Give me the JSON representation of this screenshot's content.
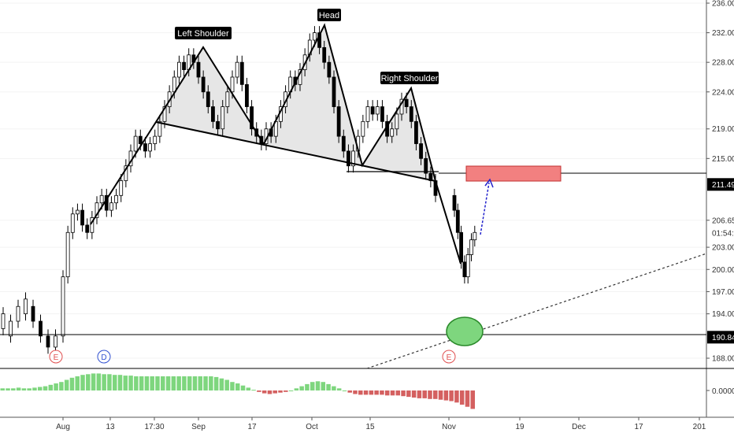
{
  "chart_data": {
    "type": "candlestick",
    "price_axis": {
      "ticks": [
        "236.00",
        "232.00",
        "228.00",
        "224.00",
        "219.00",
        "215.00",
        "211.49",
        "206.65",
        "01:54:24",
        "203.00",
        "200.00",
        "197.00",
        "194.00",
        "190.84",
        "188.00"
      ],
      "tick_values": [
        236.0,
        232.0,
        228.0,
        224.0,
        219.0,
        215.0,
        211.49,
        206.65,
        204.9,
        203.0,
        200.0,
        197.0,
        194.0,
        190.84,
        188.0
      ]
    },
    "osc_axis": {
      "ticks": [
        "0.0000"
      ]
    },
    "time_axis": {
      "ticks": [
        "Aug",
        "13",
        "17:30",
        "Sep",
        "17",
        "Oct",
        "15",
        "Nov",
        "19",
        "Dec",
        "17",
        "201"
      ]
    },
    "pattern_labels": {
      "left_shoulder": "Left Shoulder",
      "head": "Head",
      "right_shoulder": "Right Shoulder"
    },
    "events": [
      "E",
      "D",
      "E"
    ],
    "levels": [
      {
        "name": "resistance",
        "value": 211.49,
        "label": "211.49"
      },
      {
        "name": "support",
        "value": 190.84,
        "label": "190.84"
      }
    ],
    "last_price": 206.65,
    "countdown": "01:54:24",
    "price_range": [
      185,
      236.5
    ],
    "candle_seed": [
      [
        192,
        194
      ],
      [
        191,
        193
      ],
      [
        193,
        195
      ],
      [
        194,
        196
      ],
      [
        195,
        193
      ],
      [
        193,
        191
      ],
      [
        191,
        189.5
      ],
      [
        189.5,
        191
      ],
      [
        191,
        199
      ],
      [
        199,
        205
      ],
      [
        205,
        207.5
      ],
      [
        207.5,
        208
      ],
      [
        208,
        206
      ],
      [
        206,
        205
      ],
      [
        205,
        207
      ],
      [
        207,
        209
      ],
      [
        209,
        210
      ],
      [
        210,
        208
      ],
      [
        208,
        209
      ],
      [
        209,
        210
      ],
      [
        210,
        212
      ],
      [
        212,
        214
      ],
      [
        214,
        216
      ],
      [
        216,
        218
      ],
      [
        218,
        217
      ],
      [
        217,
        216
      ],
      [
        216,
        217
      ],
      [
        217,
        218
      ],
      [
        218,
        220
      ],
      [
        220,
        222
      ],
      [
        222,
        224
      ],
      [
        224,
        226
      ],
      [
        226,
        228
      ],
      [
        228,
        227
      ],
      [
        227,
        229
      ],
      [
        229,
        228
      ],
      [
        228,
        226
      ],
      [
        226,
        224
      ],
      [
        224,
        222
      ],
      [
        222,
        220
      ],
      [
        220,
        219
      ],
      [
        219,
        222
      ],
      [
        222,
        224
      ],
      [
        224,
        226
      ],
      [
        226,
        228
      ],
      [
        228,
        225
      ],
      [
        225,
        222
      ],
      [
        222,
        219
      ],
      [
        219,
        218
      ],
      [
        218,
        217
      ],
      [
        217,
        219
      ],
      [
        219,
        218
      ],
      [
        218,
        220
      ],
      [
        220,
        222
      ],
      [
        222,
        224
      ],
      [
        224,
        226
      ],
      [
        226,
        225
      ],
      [
        225,
        227
      ],
      [
        227,
        229
      ],
      [
        229,
        231
      ],
      [
        231,
        232
      ],
      [
        232,
        230
      ],
      [
        230,
        228
      ],
      [
        228,
        226
      ],
      [
        226,
        222
      ],
      [
        222,
        218
      ],
      [
        218,
        216
      ],
      [
        216,
        214
      ],
      [
        214,
        216
      ],
      [
        216,
        218
      ],
      [
        218,
        220
      ],
      [
        220,
        222
      ],
      [
        222,
        221
      ],
      [
        221,
        222
      ],
      [
        222,
        220
      ],
      [
        220,
        218
      ],
      [
        218,
        219
      ],
      [
        219,
        221
      ],
      [
        221,
        223
      ],
      [
        223,
        222
      ],
      [
        222,
        220
      ],
      [
        220,
        217
      ],
      [
        217,
        215
      ],
      [
        215,
        213
      ],
      [
        213,
        212
      ],
      [
        212,
        210
      ],
      [
        210,
        208
      ],
      [
        208,
        205
      ],
      [
        205,
        201
      ],
      [
        201,
        199
      ],
      [
        199,
        202
      ],
      [
        202,
        204
      ],
      [
        204,
        205
      ]
    ],
    "osc_seed": [
      0.3,
      0.3,
      0.3,
      0.4,
      0.3,
      0.3,
      0.4,
      0.5,
      0.6,
      0.8,
      1.0,
      1.2,
      1.5,
      1.8,
      2.0,
      2.2,
      2.3,
      2.4,
      2.4,
      2.3,
      2.3,
      2.2,
      2.2,
      2.1,
      2.1,
      2.0,
      2.0,
      2.0,
      2.0,
      2.0,
      2.0,
      2.0,
      2.0,
      2.0,
      2.0,
      2.0,
      2.0,
      2.0,
      2.0,
      2.0,
      1.9,
      1.7,
      1.5,
      1.2,
      1.0,
      0.7,
      0.4,
      0.1,
      -0.2,
      -0.4,
      -0.5,
      -0.4,
      -0.3,
      -0.2,
      0.0,
      0.3,
      0.6,
      0.9,
      1.2,
      1.3,
      1.2,
      0.9,
      0.6,
      0.3,
      0.0,
      -0.3,
      -0.5,
      -0.6,
      -0.6,
      -0.6,
      -0.6,
      -0.6,
      -0.7,
      -0.7,
      -0.7,
      -0.8,
      -0.9,
      -1.0,
      -1.1,
      -1.1,
      -1.2,
      -1.2,
      -1.3,
      -1.4,
      -1.5,
      -1.7,
      -2.0,
      -2.3,
      -2.6
    ]
  }
}
